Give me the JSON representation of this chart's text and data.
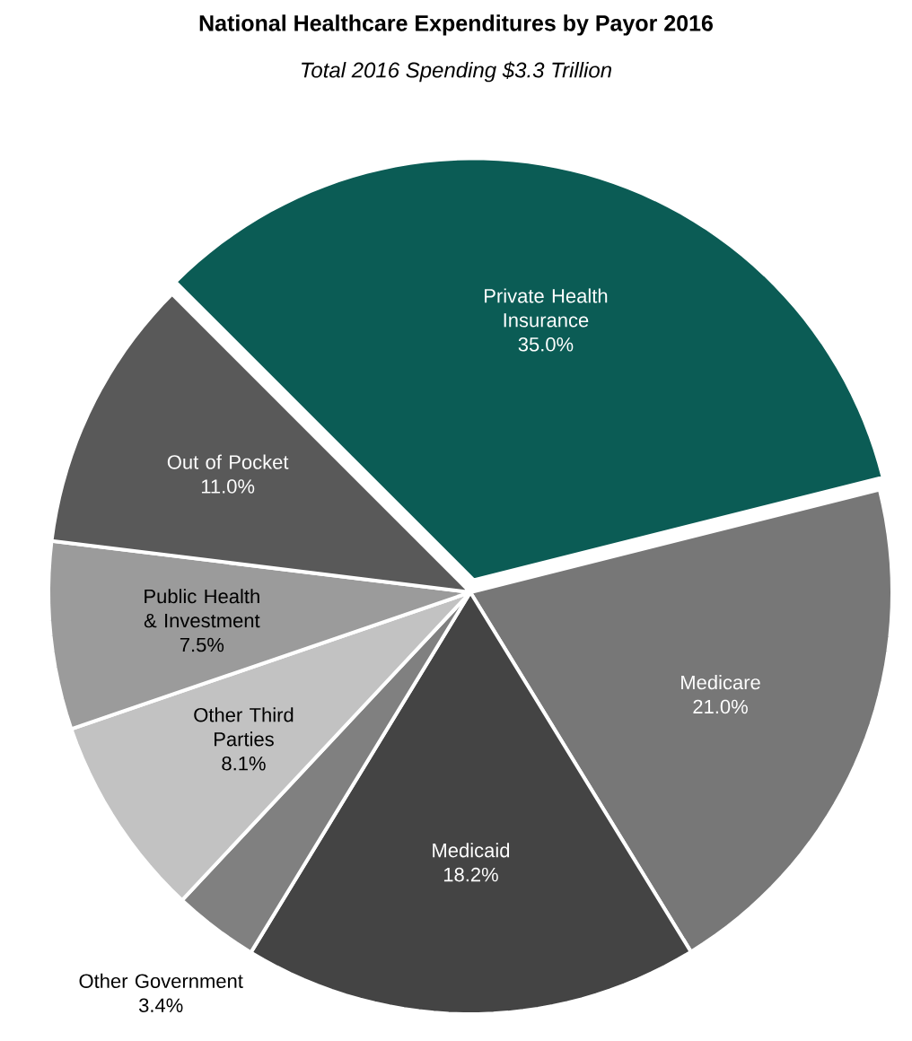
{
  "chart_data": {
    "type": "pie",
    "title": "National Healthcare Expenditures by Payor 2016",
    "subtitle": "Total 2016 Spending $3.3 Trillion",
    "categories": [
      "Private Health Insurance",
      "Medicare",
      "Medicaid",
      "Other Government",
      "Other Third Parties",
      "Public Health & Investment",
      "Out of Pocket"
    ],
    "values": [
      35.0,
      21.0,
      18.2,
      3.4,
      8.1,
      7.5,
      11.0
    ],
    "value_labels": [
      "35.0%",
      "21.0%",
      "18.2%",
      "3.4%",
      "8.1%",
      "7.5%",
      "11.0%"
    ],
    "colors": [
      "#0b5c55",
      "#777777",
      "#444444",
      "#808080",
      "#c2c2c2",
      "#9b9b9b",
      "#595959"
    ]
  }
}
